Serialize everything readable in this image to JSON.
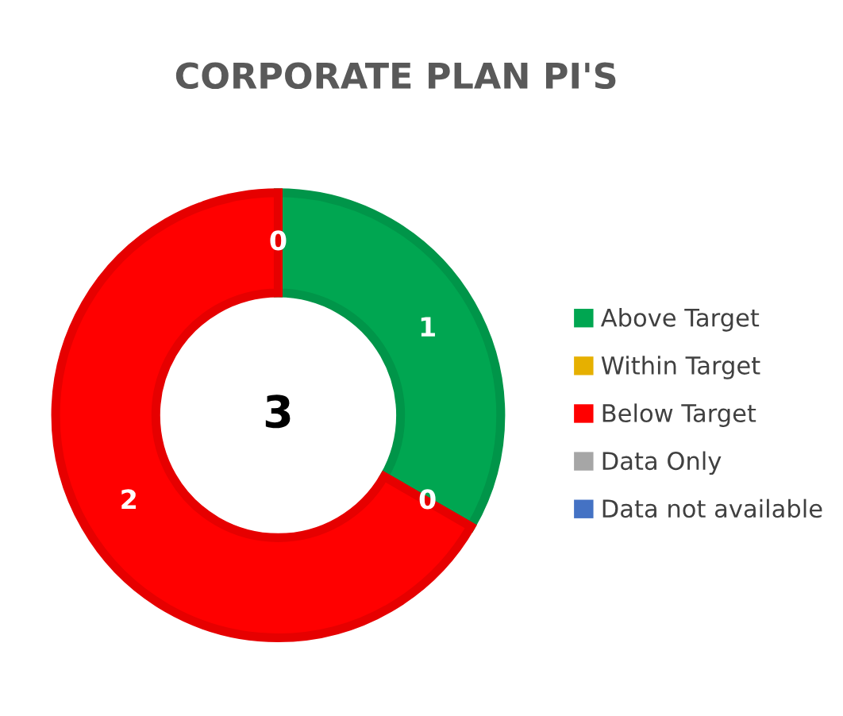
{
  "chart_data": {
    "type": "donut",
    "title": "CORPORATE PLAN PI'S",
    "categories": [
      "Above Target",
      "Within Target",
      "Below Target",
      "Data Only",
      "Data not available"
    ],
    "values": [
      1,
      0,
      2,
      0,
      0
    ],
    "colors": [
      "#00a651",
      "#e6b000",
      "#ff0000",
      "#a6a6a6",
      "#4472c4"
    ],
    "value_labels": [
      "1",
      "0",
      "2",
      "0",
      null
    ],
    "annotations": [
      "3"
    ],
    "legend": "right"
  }
}
